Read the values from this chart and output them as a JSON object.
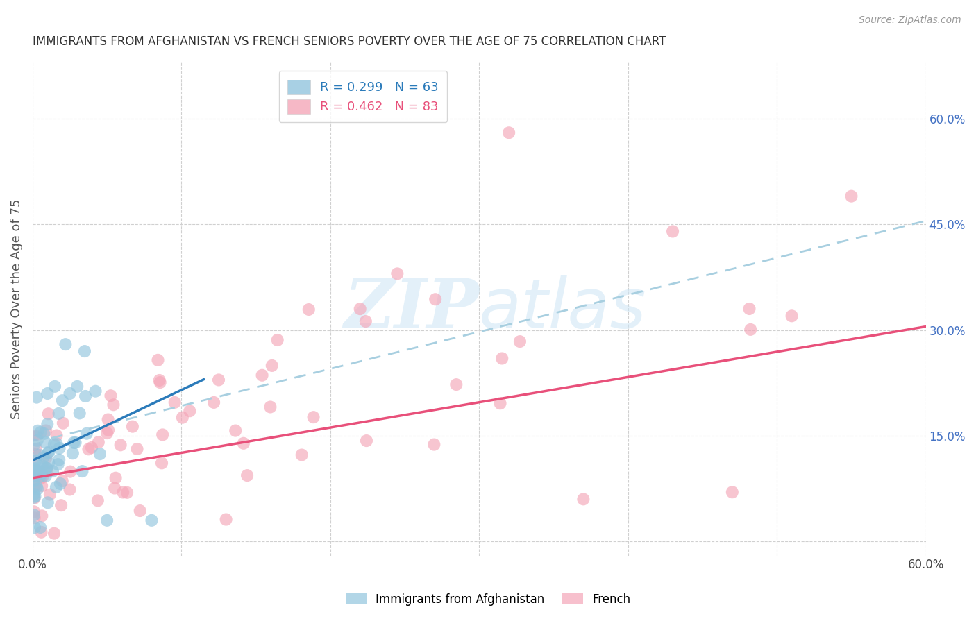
{
  "title": "IMMIGRANTS FROM AFGHANISTAN VS FRENCH SENIORS POVERTY OVER THE AGE OF 75 CORRELATION CHART",
  "source": "Source: ZipAtlas.com",
  "ylabel": "Seniors Poverty Over the Age of 75",
  "xlim": [
    0.0,
    0.6
  ],
  "ylim": [
    -0.02,
    0.68
  ],
  "yticks": [
    0.0,
    0.15,
    0.3,
    0.45,
    0.6
  ],
  "xticks": [
    0.0,
    0.1,
    0.2,
    0.3,
    0.4,
    0.5,
    0.6
  ],
  "blue_R": 0.299,
  "blue_N": 63,
  "pink_R": 0.462,
  "pink_N": 83,
  "blue_color": "#92c5de",
  "pink_color": "#f4a6b8",
  "blue_line_color": "#2b7bba",
  "pink_line_color": "#e8507a",
  "dashed_line_color": "#a8cfe0",
  "watermark_color": "#cce5f5",
  "background_color": "#ffffff",
  "grid_color": "#d0d0d0",
  "title_color": "#333333",
  "axis_label_color": "#555555",
  "right_tick_color": "#4472c4",
  "blue_line_x0": 0.0,
  "blue_line_y0": 0.115,
  "blue_line_x1": 0.115,
  "blue_line_y1": 0.245,
  "pink_line_x0": 0.0,
  "pink_line_y0": 0.09,
  "pink_line_x1": 0.6,
  "pink_line_y1": 0.305,
  "dash_line_x0": 0.0,
  "dash_line_y0": 0.14,
  "dash_line_x1": 0.6,
  "dash_line_y1": 0.455
}
